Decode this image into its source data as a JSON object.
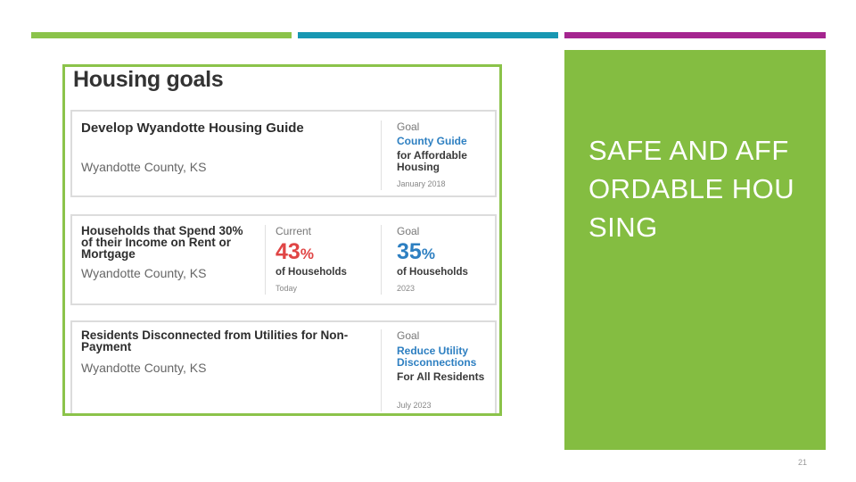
{
  "slide": {
    "title": "SAFE AND AFFORDABLE HOUSING",
    "number": "21",
    "colors": {
      "green": "#84bd41",
      "teal": "#1797b2",
      "magenta": "#a5258f"
    }
  },
  "image": {
    "heading": "Housing goals",
    "cards": [
      {
        "title": "Develop Wyandotte Housing Guide",
        "location": "Wyandotte County, KS",
        "goal_label": "Goal",
        "goal_highlight": "County Guide",
        "goal_rest": "for Affordable Housing",
        "goal_date": "January 2018"
      },
      {
        "title": "Households that Spend 30% of their Income on Rent or Mortgage",
        "location": "Wyandotte County, KS",
        "current_label": "Current",
        "current_value": "43",
        "current_unit": "%",
        "current_desc": "of Households",
        "current_date": "Today",
        "goal_label": "Goal",
        "goal_value": "35",
        "goal_unit": "%",
        "goal_desc": "of Households",
        "goal_date": "2023"
      },
      {
        "title": "Residents Disconnected from Utilities for Non-Payment",
        "location": "Wyandotte County, KS",
        "goal_label": "Goal",
        "goal_highlight": "Reduce Utility Disconnections",
        "goal_rest": "For All Residents",
        "goal_date": "July 2023"
      }
    ]
  }
}
